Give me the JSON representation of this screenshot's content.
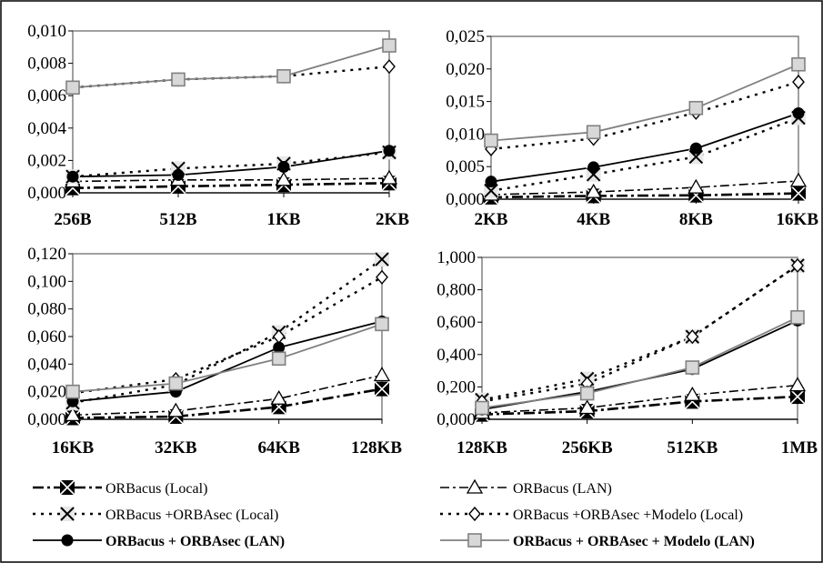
{
  "chart_data": [
    {
      "type": "line",
      "categories": [
        "256B",
        "512B",
        "1KB",
        "2KB"
      ],
      "ylim": [
        0,
        0.01
      ],
      "yticks": [
        "0,000",
        "0,002",
        "0,004",
        "0,006",
        "0,008",
        "0,010"
      ],
      "grid": false,
      "series": [
        {
          "name": "ORBacus (Local)",
          "values": [
            0.0003,
            0.0004,
            0.0005,
            0.0006
          ]
        },
        {
          "name": "ORBacus (LAN)",
          "values": [
            0.0007,
            0.0008,
            0.0008,
            0.0009
          ]
        },
        {
          "name": "ORBacus +ORBAsec (Local)",
          "values": [
            0.001,
            0.0015,
            0.0018,
            0.0025
          ]
        },
        {
          "name": "ORBacus +ORBAsec +Modelo (Local)",
          "values": [
            0.0065,
            0.007,
            0.0072,
            0.0078
          ]
        },
        {
          "name": "ORBacus + ORBAsec (LAN)",
          "values": [
            0.001,
            0.0011,
            0.0016,
            0.0026
          ]
        },
        {
          "name": "ORBacus + ORBAsec + Modelo (LAN)",
          "values": [
            0.0065,
            0.007,
            0.0072,
            0.0091
          ]
        }
      ]
    },
    {
      "type": "line",
      "categories": [
        "2KB",
        "4KB",
        "8KB",
        "16KB"
      ],
      "ylim": [
        0,
        0.025
      ],
      "yticks": [
        "0,000",
        "0,005",
        "0,010",
        "0,015",
        "0,020",
        "0,025"
      ],
      "grid": false,
      "series": [
        {
          "name": "ORBacus (Local)",
          "values": [
            0.0003,
            0.0005,
            0.0006,
            0.0009
          ]
        },
        {
          "name": "ORBacus (LAN)",
          "values": [
            0.0007,
            0.0011,
            0.0018,
            0.0028
          ]
        },
        {
          "name": "ORBacus +ORBAsec (Local)",
          "values": [
            0.0013,
            0.0038,
            0.0065,
            0.0125
          ]
        },
        {
          "name": "ORBacus +ORBAsec +Modelo (Local)",
          "values": [
            0.0077,
            0.0093,
            0.0133,
            0.018
          ]
        },
        {
          "name": "ORBacus + ORBAsec (LAN)",
          "values": [
            0.0027,
            0.0049,
            0.0078,
            0.0132
          ]
        },
        {
          "name": "ORBacus + ORBAsec + Modelo (LAN)",
          "values": [
            0.009,
            0.0103,
            0.014,
            0.0207
          ]
        }
      ]
    },
    {
      "type": "line",
      "categories": [
        "16KB",
        "32KB",
        "64KB",
        "128KB"
      ],
      "ylim": [
        0,
        0.12
      ],
      "yticks": [
        "0,000",
        "0,020",
        "0,040",
        "0,060",
        "0,080",
        "0,100",
        "0,120"
      ],
      "grid": false,
      "series": [
        {
          "name": "ORBacus (Local)",
          "values": [
            0.001,
            0.002,
            0.009,
            0.022
          ]
        },
        {
          "name": "ORBacus (LAN)",
          "values": [
            0.003,
            0.006,
            0.015,
            0.032
          ]
        },
        {
          "name": "ORBacus +ORBAsec (Local)",
          "values": [
            0.012,
            0.025,
            0.063,
            0.116
          ]
        },
        {
          "name": "ORBacus +ORBAsec +Modelo (Local)",
          "values": [
            0.019,
            0.029,
            0.06,
            0.103
          ]
        },
        {
          "name": "ORBacus + ORBAsec (LAN)",
          "values": [
            0.013,
            0.02,
            0.052,
            0.071
          ]
        },
        {
          "name": "ORBacus + ORBAsec + Modelo (LAN)",
          "values": [
            0.02,
            0.026,
            0.044,
            0.069
          ]
        }
      ]
    },
    {
      "type": "line",
      "categories": [
        "128KB",
        "256KB",
        "512KB",
        "1MB"
      ],
      "ylim": [
        0,
        1.0
      ],
      "yticks": [
        "0,000",
        "0,200",
        "0,400",
        "0,600",
        "0,800",
        "1,000"
      ],
      "grid": false,
      "series": [
        {
          "name": "ORBacus (Local)",
          "values": [
            0.03,
            0.05,
            0.11,
            0.14
          ]
        },
        {
          "name": "ORBacus (LAN)",
          "values": [
            0.04,
            0.07,
            0.15,
            0.21
          ]
        },
        {
          "name": "ORBacus +ORBAsec (Local)",
          "values": [
            0.12,
            0.25,
            0.51,
            0.95
          ]
        },
        {
          "name": "ORBacus +ORBAsec +Modelo (Local)",
          "values": [
            0.11,
            0.22,
            0.51,
            0.95
          ]
        },
        {
          "name": "ORBacus + ORBAsec (LAN)",
          "values": [
            0.06,
            0.17,
            0.31,
            0.61
          ]
        },
        {
          "name": "ORBacus + ORBAsec + Modelo (LAN)",
          "values": [
            0.07,
            0.16,
            0.32,
            0.63
          ]
        }
      ]
    }
  ],
  "legend": {
    "items": [
      {
        "label": "ORBacus (Local)",
        "bold": false
      },
      {
        "label": "ORBacus (LAN)",
        "bold": false
      },
      {
        "label": "ORBacus +ORBAsec (Local)",
        "bold": false
      },
      {
        "label": "ORBacus +ORBAsec +Modelo (Local)",
        "bold": false
      },
      {
        "label": "ORBacus + ORBAsec (LAN)",
        "bold": true
      },
      {
        "label": "ORBacus + ORBAsec + Modelo (LAN)",
        "bold": true
      }
    ]
  },
  "style": {
    "series": [
      {
        "color": "#000000",
        "dash": "12,4,3,4",
        "width": 2.6,
        "marker": "xbox"
      },
      {
        "color": "#000000",
        "dash": "10,4,3,4",
        "width": 1.6,
        "marker": "triangle"
      },
      {
        "color": "#000000",
        "dash": "3,6",
        "width": 2.4,
        "marker": "x"
      },
      {
        "color": "#000000",
        "dash": "3,6",
        "width": 2.4,
        "marker": "diamond"
      },
      {
        "color": "#000000",
        "dash": "",
        "width": 1.8,
        "marker": "circle"
      },
      {
        "color": "#808080",
        "dash": "",
        "width": 1.8,
        "marker": "square"
      }
    ]
  }
}
